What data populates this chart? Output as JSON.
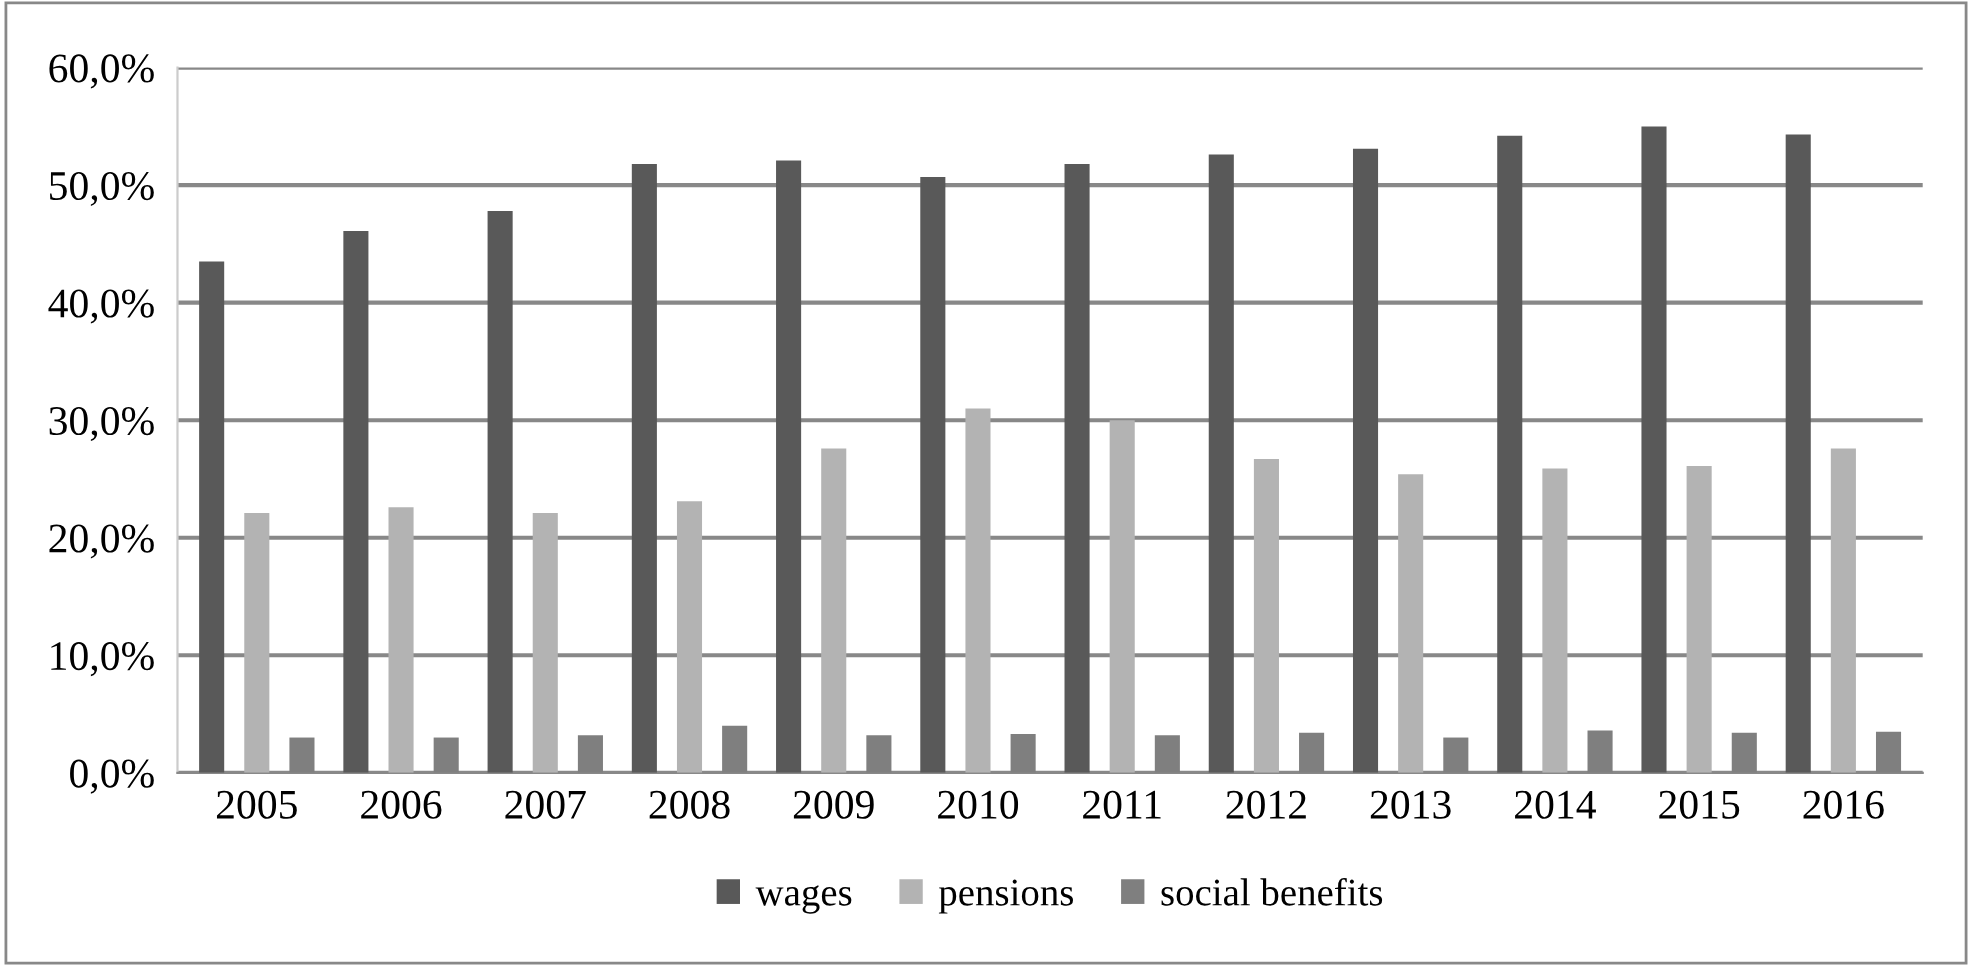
{
  "chart_data": {
    "type": "bar",
    "categories": [
      "2005",
      "2006",
      "2007",
      "2008",
      "2009",
      "2010",
      "2011",
      "2012",
      "2013",
      "2014",
      "2015",
      "2016"
    ],
    "series": [
      {
        "name": "wages",
        "color": "#595959",
        "values": [
          43.5,
          46.1,
          47.8,
          51.8,
          52.1,
          50.7,
          51.8,
          52.6,
          53.1,
          54.2,
          55.0,
          54.3
        ]
      },
      {
        "name": "pensions",
        "color": "#b3b3b3",
        "values": [
          22.1,
          22.6,
          22.1,
          23.1,
          27.6,
          31.0,
          30.0,
          26.7,
          25.4,
          25.9,
          26.1,
          27.6
        ]
      },
      {
        "name": "social benefits",
        "color": "#7f7f7f",
        "values": [
          3.0,
          3.0,
          3.2,
          4.0,
          3.2,
          3.3,
          3.2,
          3.4,
          3.0,
          3.6,
          3.4,
          3.5
        ]
      }
    ],
    "ylim": [
      0,
      60
    ],
    "yticks": [
      {
        "value": 0,
        "label": "0,0%"
      },
      {
        "value": 10,
        "label": "10,0%"
      },
      {
        "value": 20,
        "label": "20,0%"
      },
      {
        "value": 30,
        "label": "30,0%"
      },
      {
        "value": 40,
        "label": "40,0%"
      },
      {
        "value": 50,
        "label": "50,0%"
      },
      {
        "value": 60,
        "label": "60,0%"
      }
    ],
    "grid": "y",
    "legend": "bottom"
  }
}
